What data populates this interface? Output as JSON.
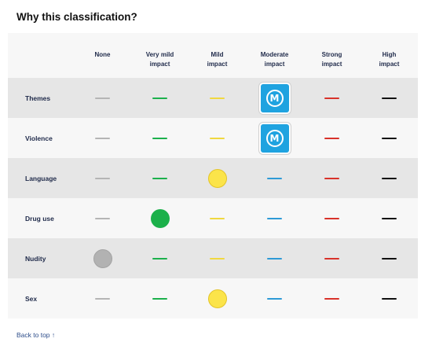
{
  "heading": "Why this classification?",
  "columns": [
    "None",
    "Very mild impact",
    "Mild impact",
    "Moderate impact",
    "Strong impact",
    "High impact"
  ],
  "column_lines": [
    [
      "None"
    ],
    [
      "Very mild",
      "impact"
    ],
    [
      "Mild",
      "impact"
    ],
    [
      "Moderate",
      "impact"
    ],
    [
      "Strong",
      "impact"
    ],
    [
      "High",
      "impact"
    ]
  ],
  "colors": {
    "none": "#b5b5b5",
    "very_mild": "#1cb04c",
    "mild": "#f0d840",
    "moderate": "#2e9ad6",
    "strong": "#d8322a",
    "high": "#111111",
    "badge": "#1fa3e0"
  },
  "rows": [
    {
      "label": "Themes",
      "selected_index": 3,
      "marker": "badge",
      "badge_letter": "M"
    },
    {
      "label": "Violence",
      "selected_index": 3,
      "marker": "badge",
      "badge_letter": "M"
    },
    {
      "label": "Language",
      "selected_index": 2,
      "marker": "dot"
    },
    {
      "label": "Drug use",
      "selected_index": 1,
      "marker": "dot"
    },
    {
      "label": "Nudity",
      "selected_index": 0,
      "marker": "dot"
    },
    {
      "label": "Sex",
      "selected_index": 2,
      "marker": "dot"
    }
  ],
  "back_to_top": "Back to top ↑"
}
